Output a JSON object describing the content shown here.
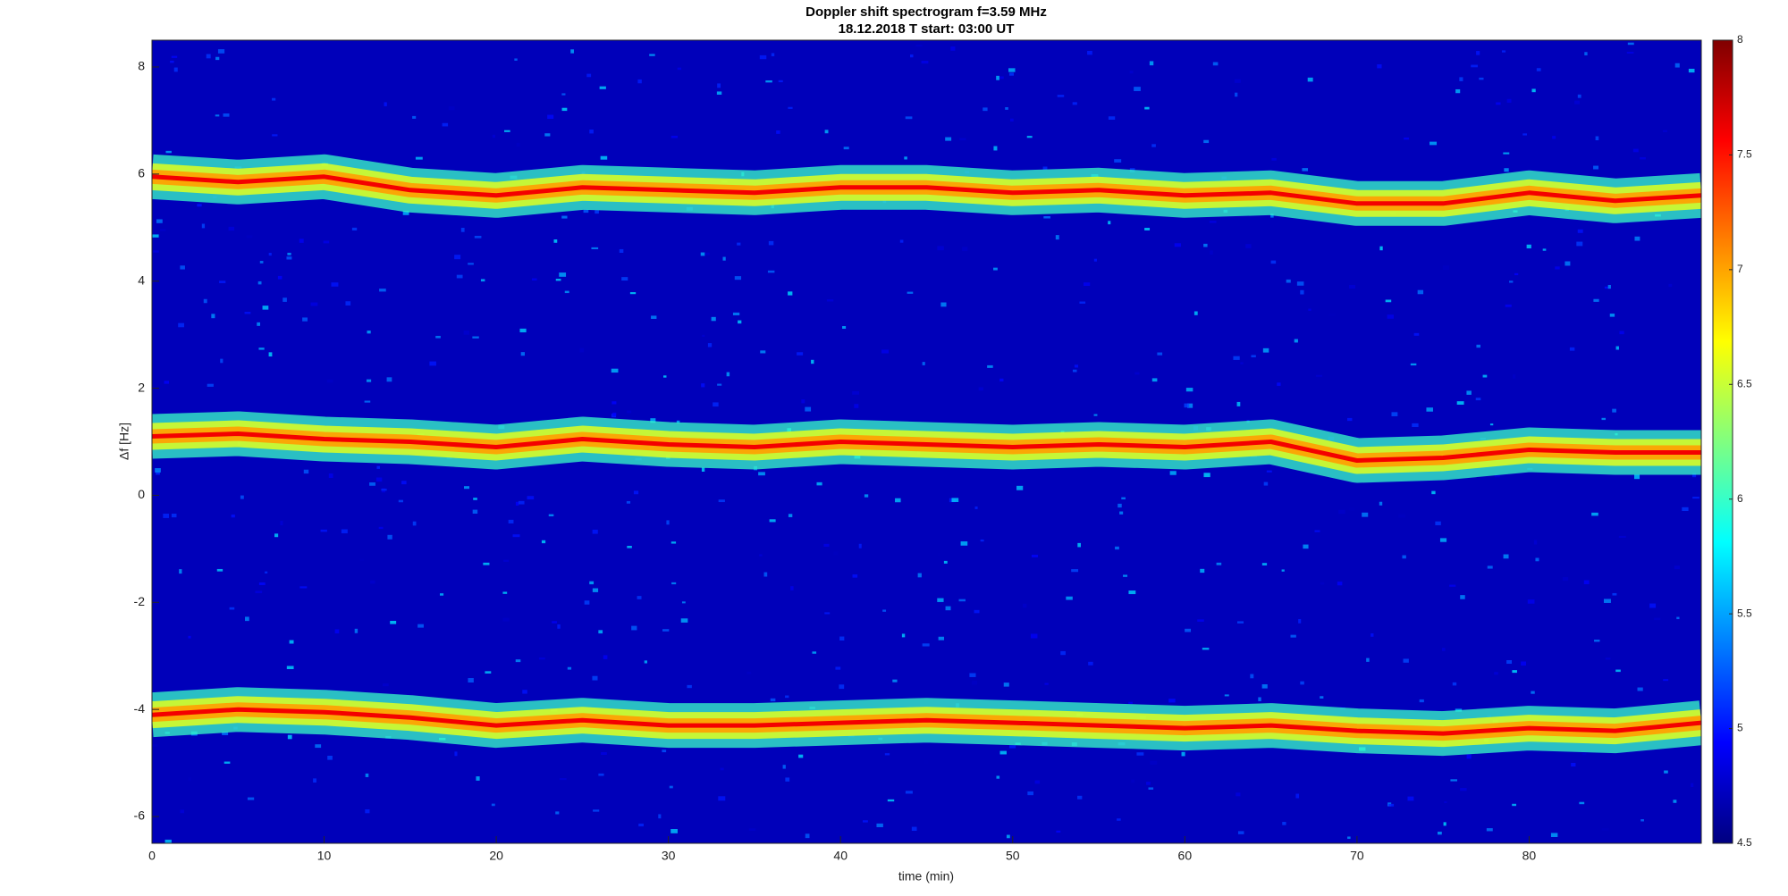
{
  "chart_data": {
    "type": "spectrogram",
    "title": "Doppler shift spectrogram f=3.59 MHz",
    "subtitle": "18.12.2018   T start: 03:00 UT",
    "xlabel": "time (min)",
    "ylabel": "Δf [Hz]",
    "xlim": [
      0,
      90
    ],
    "xticks": [
      0,
      10,
      20,
      30,
      40,
      50,
      60,
      70,
      80
    ],
    "ylim": [
      -6.5,
      8.5
    ],
    "yticks": [
      -6,
      -4,
      -2,
      0,
      2,
      4,
      6,
      8
    ],
    "colormap": "jet",
    "clim": [
      4.5,
      8
    ],
    "cticks": [
      4.5,
      5,
      5.5,
      6,
      6.5,
      7,
      7.5,
      8
    ],
    "background_level": 4.7,
    "ridge_level": 7.6,
    "x": [
      0,
      5,
      10,
      15,
      20,
      25,
      30,
      35,
      40,
      45,
      50,
      55,
      60,
      65,
      70,
      75,
      80,
      85,
      90
    ],
    "ridges": [
      {
        "values": [
          5.95,
          5.85,
          5.95,
          5.7,
          5.6,
          5.75,
          5.7,
          5.65,
          5.75,
          5.75,
          5.65,
          5.7,
          5.6,
          5.65,
          5.45,
          5.45,
          5.65,
          5.5,
          5.6
        ]
      },
      {
        "values": [
          1.1,
          1.15,
          1.05,
          1.0,
          0.9,
          1.05,
          0.95,
          0.9,
          1.0,
          0.95,
          0.9,
          0.95,
          0.9,
          1.0,
          0.65,
          0.7,
          0.85,
          0.8,
          0.8
        ]
      },
      {
        "values": [
          -4.1,
          -4.0,
          -4.05,
          -4.15,
          -4.3,
          -4.2,
          -4.3,
          -4.3,
          -4.25,
          -4.2,
          -4.25,
          -4.3,
          -4.35,
          -4.3,
          -4.4,
          -4.45,
          -4.35,
          -4.4,
          -4.25
        ]
      }
    ]
  }
}
